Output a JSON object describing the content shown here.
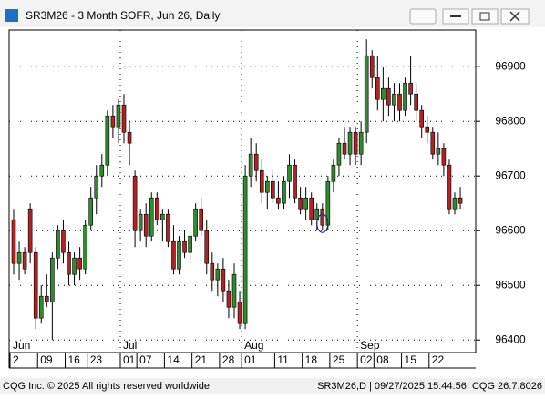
{
  "chart_data": {
    "type": "candlestick",
    "title": "SR3M26 - 3 Month SOFR, Jun 26, Daily",
    "up_color": "#2e8b2e",
    "down_color": "#b22222",
    "open": [
      96620,
      96540,
      96560,
      96640,
      96560,
      96440,
      96480,
      96470,
      96550,
      96600,
      96560,
      96520,
      96550,
      96530,
      96610,
      96660,
      96700,
      96720,
      96810,
      96790,
      96830,
      96780,
      96700,
      96600,
      96630,
      96590,
      96660,
      96620,
      96630,
      96580,
      96530,
      96580,
      96560,
      96590,
      96640,
      96600,
      96540,
      96510,
      96530,
      96490,
      96460,
      96470,
      96430,
      96700,
      96740,
      96710,
      96670,
      96690,
      96660,
      96650,
      96690,
      96720,
      96660,
      96640,
      96660,
      96620,
      96640,
      96610,
      96690,
      96720,
      96760,
      96740,
      96780,
      96740,
      96780,
      96920,
      96880,
      96840,
      96860,
      96830,
      96850,
      96820,
      96870,
      96850,
      96820,
      96790,
      96780,
      96740,
      96750,
      96720,
      96640,
      96660
    ],
    "high": [
      96640,
      96580,
      96570,
      96650,
      96570,
      96500,
      96520,
      96560,
      96610,
      96620,
      96580,
      96560,
      96570,
      96620,
      96680,
      96720,
      96740,
      96820,
      96830,
      96840,
      96850,
      96800,
      96710,
      96640,
      96650,
      96670,
      96670,
      96640,
      96640,
      96610,
      96590,
      96600,
      96600,
      96650,
      96660,
      96620,
      96560,
      96540,
      96550,
      96510,
      96540,
      96490,
      96720,
      96770,
      96760,
      96730,
      96700,
      96710,
      96690,
      96700,
      96740,
      96730,
      96680,
      96680,
      96670,
      96650,
      96650,
      96700,
      96730,
      96770,
      96790,
      96790,
      96790,
      96800,
      96950,
      96930,
      96920,
      96900,
      96880,
      96870,
      96870,
      96880,
      96920,
      96870,
      96830,
      96810,
      96790,
      96780,
      96760,
      96730,
      96670,
      96680
    ],
    "low": [
      96520,
      96510,
      96520,
      96540,
      96420,
      96430,
      96460,
      96400,
      96530,
      96540,
      96500,
      96500,
      96510,
      96520,
      96600,
      96630,
      96680,
      96700,
      96770,
      96760,
      96760,
      96720,
      96570,
      96580,
      96570,
      96580,
      96610,
      96580,
      96570,
      96520,
      96520,
      96550,
      96540,
      96580,
      96590,
      96520,
      96490,
      96480,
      96470,
      96440,
      96440,
      96420,
      96420,
      96680,
      96690,
      96650,
      96640,
      96650,
      96640,
      96640,
      96660,
      96650,
      96630,
      96620,
      96610,
      96600,
      96600,
      96600,
      96670,
      96700,
      96730,
      96720,
      96720,
      96720,
      96760,
      96860,
      96820,
      96800,
      96810,
      96800,
      96800,
      96810,
      96830,
      96800,
      96770,
      96760,
      96730,
      96720,
      96700,
      96630,
      96630,
      96640
    ],
    "close": [
      96540,
      96560,
      96530,
      96560,
      96440,
      96480,
      96470,
      96550,
      96600,
      96560,
      96520,
      96550,
      96530,
      96610,
      96660,
      96700,
      96720,
      96810,
      96790,
      96830,
      96780,
      96760,
      96600,
      96630,
      96590,
      96660,
      96620,
      96630,
      96580,
      96530,
      96580,
      96560,
      96590,
      96640,
      96600,
      96540,
      96510,
      96530,
      96490,
      96460,
      96520,
      96430,
      96700,
      96740,
      96710,
      96670,
      96690,
      96660,
      96650,
      96690,
      96720,
      96660,
      96640,
      96660,
      96620,
      96640,
      96610,
      96690,
      96720,
      96760,
      96740,
      96780,
      96740,
      96780,
      96920,
      96880,
      96840,
      96860,
      96830,
      96850,
      96820,
      96870,
      96850,
      96820,
      96790,
      96780,
      96740,
      96750,
      96720,
      96640,
      96660,
      96650
    ],
    "ylim": [
      96377,
      96967
    ],
    "yticks": [
      96400,
      96500,
      96600,
      96700,
      96800,
      96900
    ],
    "x_ticks": [
      {
        "value": 0,
        "label": "2"
      },
      {
        "value": 5,
        "label": "09"
      },
      {
        "value": 10,
        "label": "16"
      },
      {
        "value": 14,
        "label": "23"
      },
      {
        "value": 20,
        "label": "01"
      },
      {
        "value": 23,
        "label": "07"
      },
      {
        "value": 28,
        "label": "14"
      },
      {
        "value": 33,
        "label": "21"
      },
      {
        "value": 38,
        "label": "28"
      },
      {
        "value": 42,
        "label": "01"
      },
      {
        "value": 48,
        "label": "11"
      },
      {
        "value": 53,
        "label": "18"
      },
      {
        "value": 58,
        "label": "25"
      },
      {
        "value": 63,
        "label": "02"
      },
      {
        "value": 66,
        "label": "08"
      },
      {
        "value": 71,
        "label": "15"
      },
      {
        "value": 76,
        "label": "22"
      }
    ],
    "month_labels": [
      {
        "value": 0,
        "label": "Jun"
      },
      {
        "value": 20,
        "label": "Jul"
      },
      {
        "value": 42,
        "label": "Aug"
      },
      {
        "value": 63,
        "label": "Sep"
      }
    ],
    "grid": true,
    "footer_left": "CQG Inc. © 2025 All rights reserved worldwide",
    "footer_right": "SR3M26,D | 09/27/2025 15:44:56, CQG 26.7.8026"
  }
}
